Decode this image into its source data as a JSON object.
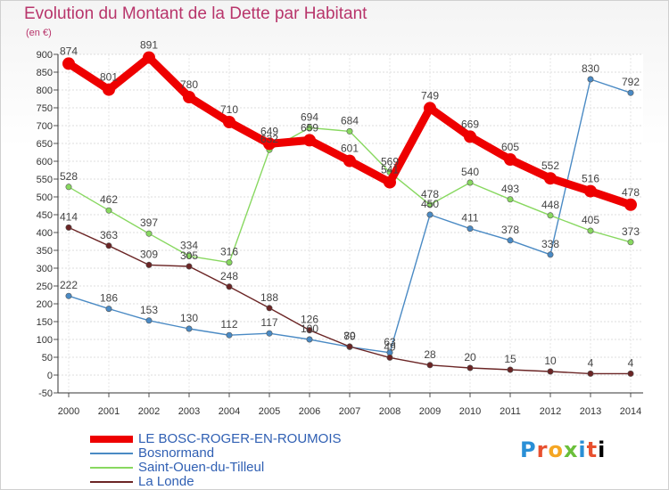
{
  "chart_data": {
    "type": "line",
    "title": "Evolution du Montant de la Dette par Habitant",
    "subtitle": "(en €)",
    "x": [
      "2000",
      "2001",
      "2002",
      "2003",
      "2004",
      "2005",
      "2006",
      "2007",
      "2008",
      "2009",
      "2010",
      "2011",
      "2012",
      "2013",
      "2014"
    ],
    "ylim": [
      -50,
      900
    ],
    "yticks": [
      -50,
      0,
      50,
      100,
      150,
      200,
      250,
      300,
      350,
      400,
      450,
      500,
      550,
      600,
      650,
      700,
      750,
      800,
      850,
      900
    ],
    "grid": true,
    "legend_position": "bottom-left",
    "series": [
      {
        "name": "LE BOSC-ROGER-EN-ROUMOIS",
        "color": "#ee0000",
        "values": [
          874,
          801,
          891,
          780,
          710,
          649,
          659,
          601,
          541,
          749,
          669,
          605,
          552,
          516,
          478
        ]
      },
      {
        "name": "Bosnormand",
        "color": "#4a8ac4",
        "values": [
          222,
          186,
          153,
          130,
          112,
          117,
          100,
          79,
          63,
          450,
          411,
          378,
          338,
          830,
          792
        ]
      },
      {
        "name": "Saint-Ouen-du-Tilleul",
        "color": "#88d860",
        "values": [
          528,
          462,
          397,
          334,
          316,
          632,
          694,
          684,
          569,
          478,
          540,
          493,
          448,
          405,
          373
        ]
      },
      {
        "name": "La Londe",
        "color": "#6b2525",
        "values": [
          414,
          363,
          309,
          305,
          248,
          188,
          126,
          80,
          49,
          28,
          20,
          15,
          10,
          4,
          4
        ]
      }
    ]
  },
  "logo": {
    "letters": [
      "P",
      "r",
      "o",
      "x",
      "i",
      "t",
      "i"
    ]
  }
}
